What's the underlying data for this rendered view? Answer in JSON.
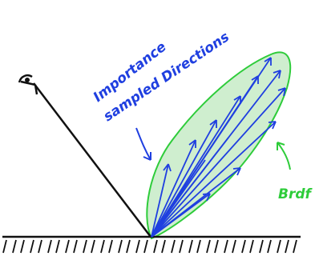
{
  "labels": {
    "importance": "Importance",
    "sampled": "sampled Directions",
    "brdf": "Brdf"
  },
  "colors": {
    "background": "#ffffff",
    "ink": "#111111",
    "blue": "#1f3fe0",
    "green": "#2ecc3a",
    "lobe_fill": "#cfeecf"
  },
  "icons": {
    "eye": "eye-icon"
  }
}
